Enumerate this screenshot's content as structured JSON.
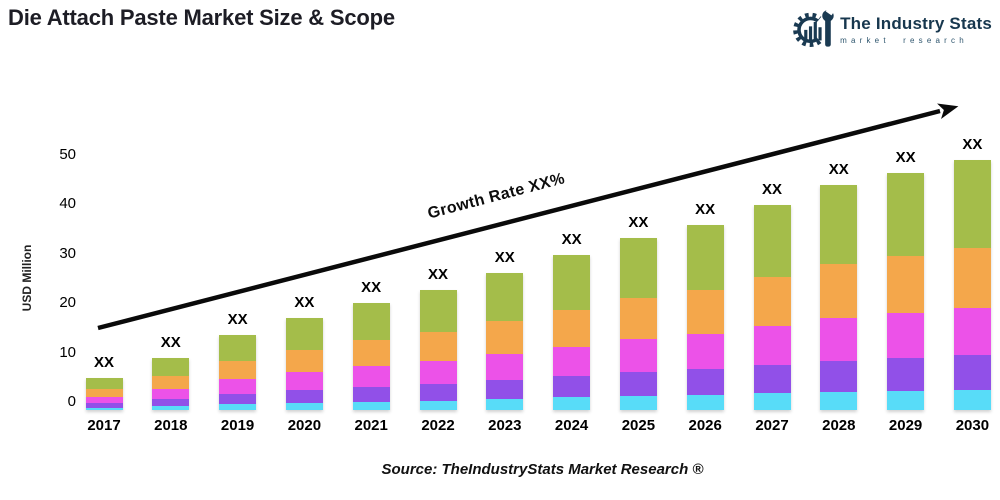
{
  "header": {
    "title": "Die Attach Paste Market Size & Scope",
    "logo": {
      "name": "The Industry Stats",
      "tagline": "market research",
      "color": "#1a3a52"
    }
  },
  "chart_data": {
    "type": "bar",
    "stacked": true,
    "title": "Die Attach Paste Market Size & Scope",
    "xlabel": "",
    "ylabel": "USD Million",
    "ylim": [
      0,
      50
    ],
    "y_ticks": [
      0,
      10,
      20,
      30,
      40,
      50
    ],
    "grid": false,
    "legend": "none",
    "bar_value_label": "XX",
    "annotation": {
      "text": "Growth Rate XX%",
      "type": "trend-arrow"
    },
    "categories": [
      "2017",
      "2018",
      "2019",
      "2020",
      "2021",
      "2022",
      "2023",
      "2024",
      "2025",
      "2026",
      "2027",
      "2028",
      "2029",
      "2030"
    ],
    "series_order": "bottom-to-top",
    "series": [
      {
        "name": "layer-1-cyan",
        "color": "#58dcf8",
        "values": [
          0.5,
          0.8,
          1.2,
          1.5,
          1.7,
          1.9,
          2.2,
          2.5,
          2.8,
          3.0,
          3.3,
          3.6,
          3.8,
          4.0
        ]
      },
      {
        "name": "layer-2-purple",
        "color": "#9150e8",
        "values": [
          0.9,
          1.5,
          2.1,
          2.6,
          3.0,
          3.4,
          3.9,
          4.3,
          4.8,
          5.2,
          5.7,
          6.3,
          6.7,
          7.0
        ]
      },
      {
        "name": "layer-3-magenta",
        "color": "#ec52e8",
        "values": [
          1.2,
          2.0,
          2.9,
          3.5,
          4.1,
          4.6,
          5.2,
          5.9,
          6.6,
          7.0,
          7.8,
          8.6,
          9.0,
          9.5
        ]
      },
      {
        "name": "layer-4-orange",
        "color": "#f4a74b",
        "values": [
          1.6,
          2.5,
          3.6,
          4.4,
          5.2,
          5.8,
          6.6,
          7.4,
          8.3,
          8.9,
          9.8,
          10.8,
          11.4,
          12.0
        ]
      },
      {
        "name": "layer-5-green",
        "color": "#a4bd4a",
        "values": [
          2.3,
          3.7,
          5.2,
          6.5,
          7.5,
          8.3,
          9.6,
          10.9,
          12.0,
          12.9,
          14.4,
          15.7,
          16.6,
          17.5
        ]
      }
    ],
    "totals": [
      6.5,
      10.5,
      15,
      18.5,
      21.5,
      24,
      27.5,
      31,
      34.5,
      37,
      41,
      45,
      47.5,
      50
    ]
  },
  "footer": {
    "source": "Source: TheIndustryStats Market Research ®"
  }
}
